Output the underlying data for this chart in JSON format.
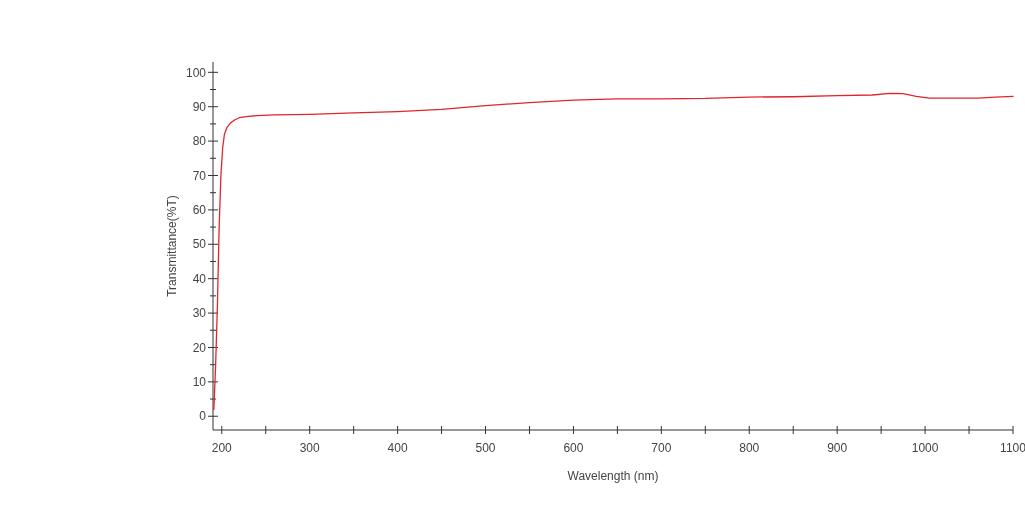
{
  "chart_data": {
    "type": "line",
    "xlabel": "Wavelength (nm)",
    "ylabel": "Transmittance(%T)",
    "xlim": [
      190,
      1100
    ],
    "ylim": [
      -4,
      103
    ],
    "xticks": [
      200,
      {
        "value": 250,
        "label": null
      },
      300,
      {
        "value": 350,
        "label": null
      },
      400,
      {
        "value": 450,
        "label": null
      },
      500,
      {
        "value": 550,
        "label": null
      },
      600,
      {
        "value": 650,
        "label": null
      },
      700,
      {
        "value": 750,
        "label": null
      },
      800,
      {
        "value": 850,
        "label": null
      },
      900,
      {
        "value": 950,
        "label": null
      },
      1000,
      {
        "value": 1050,
        "label": null
      },
      1100
    ],
    "yticks": [
      0,
      {
        "value": 5,
        "label": null
      },
      10,
      {
        "value": 15,
        "label": null
      },
      20,
      {
        "value": 25,
        "label": null
      },
      30,
      {
        "value": 35,
        "label": null
      },
      40,
      {
        "value": 45,
        "label": null
      },
      50,
      {
        "value": 55,
        "label": null
      },
      60,
      {
        "value": 65,
        "label": null
      },
      70,
      {
        "value": 75,
        "label": null
      },
      80,
      {
        "value": 85,
        "label": null
      },
      90,
      {
        "value": 95,
        "label": null
      },
      100
    ],
    "grid": false,
    "marker": "none",
    "line_style": "solid",
    "series": [
      {
        "color": "#e0252b",
        "x": [
          191,
          193,
          195,
          197,
          199,
          201,
          203,
          206,
          210,
          215,
          220,
          230,
          240,
          260,
          300,
          350,
          400,
          450,
          500,
          550,
          600,
          650,
          700,
          750,
          800,
          850,
          900,
          940,
          960,
          975,
          990,
          1005,
          1030,
          1060,
          1080,
          1100
        ],
        "values": [
          2,
          15,
          32,
          55,
          70,
          78,
          82,
          84,
          85.3,
          86.2,
          86.8,
          87.2,
          87.4,
          87.6,
          87.8,
          88.2,
          88.6,
          89.2,
          90.3,
          91.2,
          91.9,
          92.3,
          92.3,
          92.4,
          92.8,
          92.9,
          93.2,
          93.4,
          93.9,
          93.8,
          93.0,
          92.5,
          92.5,
          92.5,
          92.8,
          93.0
        ]
      }
    ]
  }
}
